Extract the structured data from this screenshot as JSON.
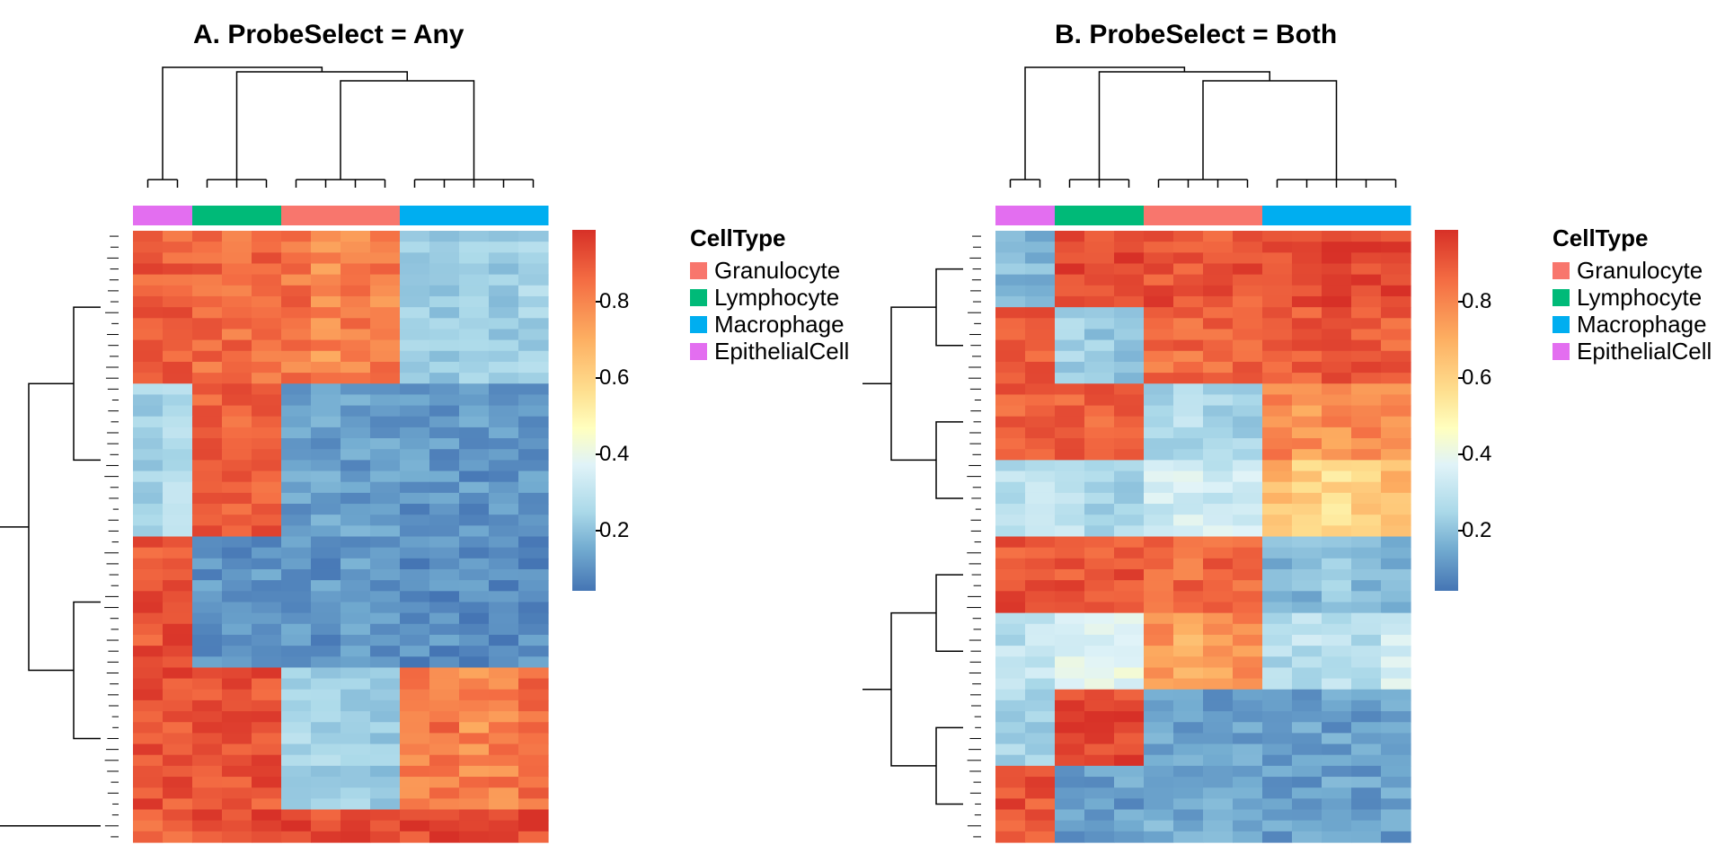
{
  "chart_data": [
    {
      "type": "heatmap",
      "title": "A. ProbeSelect = Any",
      "columns": [
        "EpithelialCell",
        "EpithelialCell",
        "Lymphocyte",
        "Lymphocyte",
        "Lymphocyte",
        "Granulocyte",
        "Granulocyte",
        "Granulocyte",
        "Granulocyte",
        "Macrophage",
        "Macrophage",
        "Macrophage",
        "Macrophage",
        "Macrophage"
      ],
      "row_blocks": [
        {
          "rows": 14,
          "values": [
            0.88,
            0.88,
            0.86,
            0.85,
            0.86,
            0.84,
            0.8,
            0.82,
            0.82,
            0.25,
            0.22,
            0.22,
            0.22,
            0.25
          ]
        },
        {
          "rows": 14,
          "values": [
            0.25,
            0.28,
            0.88,
            0.88,
            0.88,
            0.12,
            0.12,
            0.12,
            0.12,
            0.1,
            0.1,
            0.1,
            0.1,
            0.1
          ]
        },
        {
          "rows": 12,
          "values": [
            0.9,
            0.9,
            0.1,
            0.1,
            0.1,
            0.1,
            0.1,
            0.1,
            0.1,
            0.08,
            0.08,
            0.08,
            0.08,
            0.08
          ]
        },
        {
          "rows": 13,
          "values": [
            0.9,
            0.9,
            0.9,
            0.9,
            0.9,
            0.25,
            0.25,
            0.25,
            0.22,
            0.82,
            0.84,
            0.8,
            0.82,
            0.84
          ]
        },
        {
          "rows": 3,
          "values": [
            0.88,
            0.88,
            0.92,
            0.92,
            0.92,
            0.92,
            0.92,
            0.92,
            0.92,
            0.92,
            0.92,
            0.92,
            0.92,
            0.92
          ]
        }
      ],
      "colorbar": {
        "range": [
          0.03,
          0.97
        ],
        "ticks": [
          "0.8",
          "0.6",
          "0.4",
          "0.2"
        ],
        "tick_values": [
          0.8,
          0.6,
          0.4,
          0.2
        ]
      },
      "legend": {
        "title": "CellType",
        "items": [
          {
            "label": "Granulocyte",
            "color": "#f8766d"
          },
          {
            "label": "Lymphocyte",
            "color": "#00ba78"
          },
          {
            "label": "Macrophage",
            "color": "#00aef0"
          },
          {
            "label": "EpithelialCell",
            "color": "#e36ef0"
          }
        ]
      }
    },
    {
      "type": "heatmap",
      "title": "B. ProbeSelect = Both",
      "columns": [
        "EpithelialCell",
        "EpithelialCell",
        "Lymphocyte",
        "Lymphocyte",
        "Lymphocyte",
        "Granulocyte",
        "Granulocyte",
        "Granulocyte",
        "Granulocyte",
        "Macrophage",
        "Macrophage",
        "Macrophage",
        "Macrophage",
        "Macrophage"
      ],
      "row_blocks": [
        {
          "rows": 7,
          "values": [
            0.18,
            0.18,
            0.92,
            0.92,
            0.92,
            0.9,
            0.9,
            0.9,
            0.9,
            0.92,
            0.92,
            0.92,
            0.92,
            0.92
          ]
        },
        {
          "rows": 7,
          "values": [
            0.88,
            0.88,
            0.25,
            0.22,
            0.22,
            0.86,
            0.86,
            0.86,
            0.86,
            0.88,
            0.88,
            0.88,
            0.88,
            0.88
          ]
        },
        {
          "rows": 7,
          "values": [
            0.88,
            0.88,
            0.88,
            0.88,
            0.88,
            0.25,
            0.28,
            0.25,
            0.25,
            0.8,
            0.78,
            0.78,
            0.8,
            0.8
          ]
        },
        {
          "rows": 7,
          "values": [
            0.3,
            0.3,
            0.3,
            0.25,
            0.25,
            0.35,
            0.35,
            0.35,
            0.35,
            0.7,
            0.65,
            0.62,
            0.66,
            0.7
          ]
        },
        {
          "rows": 7,
          "values": [
            0.9,
            0.9,
            0.9,
            0.9,
            0.9,
            0.86,
            0.86,
            0.86,
            0.86,
            0.18,
            0.18,
            0.22,
            0.18,
            0.18
          ]
        },
        {
          "rows": 7,
          "values": [
            0.3,
            0.3,
            0.4,
            0.38,
            0.4,
            0.78,
            0.75,
            0.75,
            0.8,
            0.28,
            0.3,
            0.32,
            0.3,
            0.35
          ]
        },
        {
          "rows": 7,
          "values": [
            0.25,
            0.25,
            0.92,
            0.92,
            0.92,
            0.12,
            0.12,
            0.12,
            0.12,
            0.12,
            0.12,
            0.12,
            0.12,
            0.12
          ]
        },
        {
          "rows": 7,
          "values": [
            0.9,
            0.9,
            0.12,
            0.12,
            0.12,
            0.15,
            0.15,
            0.15,
            0.15,
            0.12,
            0.12,
            0.12,
            0.12,
            0.12
          ]
        }
      ],
      "colorbar": {
        "range": [
          0.03,
          0.97
        ],
        "ticks": [
          "0.8",
          "0.6",
          "0.4",
          "0.2"
        ],
        "tick_values": [
          0.8,
          0.6,
          0.4,
          0.2
        ]
      },
      "legend": {
        "title": "CellType",
        "items": [
          {
            "label": "Granulocyte",
            "color": "#f8766d"
          },
          {
            "label": "Lymphocyte",
            "color": "#00ba78"
          },
          {
            "label": "Macrophage",
            "color": "#00aef0"
          },
          {
            "label": "EpithelialCell",
            "color": "#e36ef0"
          }
        ]
      }
    }
  ]
}
